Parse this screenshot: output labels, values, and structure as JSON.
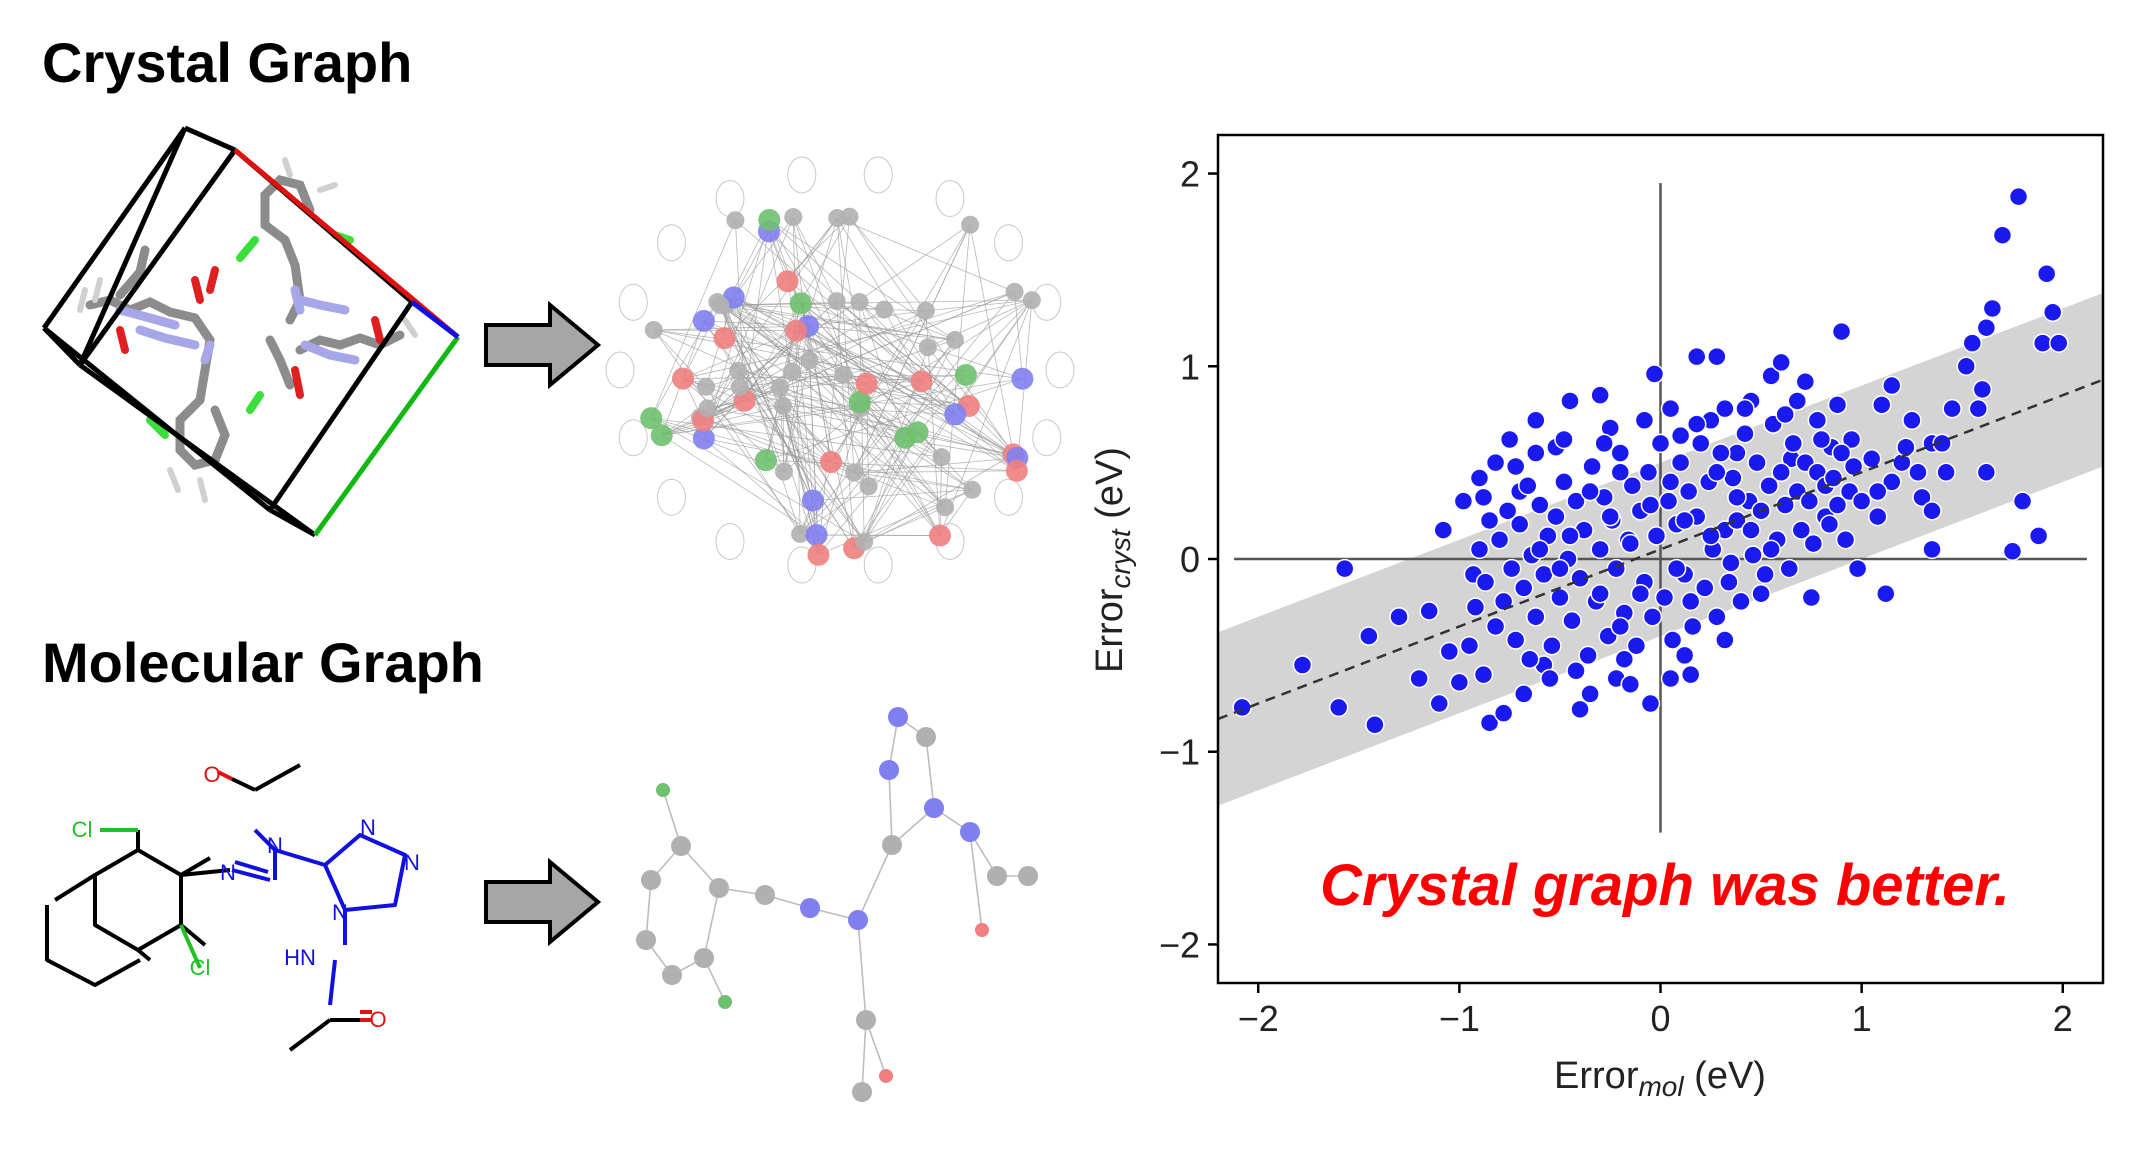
{
  "titles": {
    "crystal": "Crystal Graph",
    "molecular": "Molecular Graph"
  },
  "molecule_atoms": {
    "cl": "Cl",
    "n": "N",
    "o": "O",
    "hn": "HN"
  },
  "colors": {
    "node_gray": "#b0b0b0",
    "node_blue": "#7f7ff0",
    "node_red": "#f07f7f",
    "node_green": "#6fc06f",
    "scatter_point": "#1a1af0",
    "band": "#d4d4d4",
    "callout": "#ff0000",
    "arrow_fill": "#a6a6a6"
  },
  "chart_data": {
    "type": "scatter",
    "xlabel": "Error",
    "xlabel_sub": "mol",
    "xlabel_unit": " (eV)",
    "ylabel": "Error",
    "ylabel_sub": "cryst",
    "ylabel_unit": " (eV)",
    "xlim": [
      -2.2,
      2.2
    ],
    "ylim": [
      -2.2,
      2.2
    ],
    "x_ticks": [
      "−2",
      "−1",
      "0",
      "1",
      "2"
    ],
    "y_ticks": [
      "2",
      "1",
      "0",
      "−1",
      "−2"
    ],
    "fit_line": {
      "slope": 0.4,
      "intercept": 0.05
    },
    "band_halfwidth": 0.45,
    "annotation": "Crystal graph was better.",
    "points": [
      [
        -2.08,
        -0.77
      ],
      [
        -1.78,
        -0.55
      ],
      [
        -1.57,
        -0.05
      ],
      [
        -1.6,
        -0.77
      ],
      [
        -1.42,
        -0.86
      ],
      [
        -1.45,
        -0.4
      ],
      [
        -1.3,
        -0.3
      ],
      [
        -1.2,
        -0.62
      ],
      [
        -1.15,
        -0.27
      ],
      [
        -1.1,
        -0.75
      ],
      [
        -1.08,
        0.15
      ],
      [
        -1.05,
        -0.48
      ],
      [
        -1.0,
        -0.64
      ],
      [
        -0.98,
        0.3
      ],
      [
        -0.93,
        -0.08
      ],
      [
        -0.9,
        0.42
      ],
      [
        -0.88,
        -0.6
      ],
      [
        -0.85,
        -0.85
      ],
      [
        -0.82,
        0.5
      ],
      [
        -0.78,
        -0.8
      ],
      [
        -0.75,
        0.62
      ],
      [
        -0.7,
        0.35
      ],
      [
        -0.68,
        -0.7
      ],
      [
        -0.62,
        0.72
      ],
      [
        -0.58,
        -0.55
      ],
      [
        -0.52,
        0.58
      ],
      [
        -0.45,
        0.82
      ],
      [
        -0.4,
        -0.78
      ],
      [
        -0.3,
        0.85
      ],
      [
        -0.22,
        -0.62
      ],
      [
        -0.2,
        0.45
      ],
      [
        -0.08,
        0.72
      ],
      [
        -0.05,
        -0.75
      ],
      [
        0.1,
        0.64
      ],
      [
        0.15,
        -0.6
      ],
      [
        -0.03,
        0.96
      ],
      [
        0.18,
        1.05
      ],
      [
        0.28,
        1.05
      ],
      [
        0.32,
        0.78
      ],
      [
        0.38,
        0.55
      ],
      [
        0.45,
        0.82
      ],
      [
        0.5,
        -0.18
      ],
      [
        0.55,
        0.95
      ],
      [
        0.6,
        1.02
      ],
      [
        0.65,
        0.52
      ],
      [
        0.68,
        0.82
      ],
      [
        0.72,
        0.92
      ],
      [
        0.75,
        -0.2
      ],
      [
        0.78,
        0.72
      ],
      [
        0.82,
        0.22
      ],
      [
        0.85,
        0.58
      ],
      [
        0.88,
        0.8
      ],
      [
        0.9,
        1.18
      ],
      [
        0.92,
        0.1
      ],
      [
        0.95,
        0.62
      ],
      [
        0.98,
        -0.05
      ],
      [
        1.05,
        0.52
      ],
      [
        1.08,
        0.22
      ],
      [
        1.1,
        0.8
      ],
      [
        1.12,
        -0.18
      ],
      [
        1.15,
        0.4
      ],
      [
        1.2,
        0.5
      ],
      [
        1.25,
        0.72
      ],
      [
        1.28,
        0.45
      ],
      [
        1.3,
        0.32
      ],
      [
        1.35,
        0.05
      ],
      [
        1.35,
        0.25
      ],
      [
        1.42,
        0.45
      ],
      [
        1.45,
        0.78
      ],
      [
        1.52,
        1.0
      ],
      [
        1.55,
        1.12
      ],
      [
        1.6,
        0.88
      ],
      [
        1.65,
        1.3
      ],
      [
        1.7,
        1.68
      ],
      [
        1.78,
        1.88
      ],
      [
        1.8,
        0.3
      ],
      [
        1.88,
        0.12
      ],
      [
        1.92,
        1.48
      ],
      [
        1.95,
        1.28
      ],
      [
        1.62,
        1.2
      ],
      [
        1.58,
        0.78
      ],
      [
        1.62,
        0.45
      ],
      [
        1.9,
        1.12
      ],
      [
        1.98,
        1.12
      ],
      [
        1.75,
        0.04
      ],
      [
        1.22,
        0.58
      ],
      [
        1.35,
        0.6
      ],
      [
        1.08,
        0.35
      ],
      [
        1.15,
        0.9
      ],
      [
        1.4,
        0.6
      ],
      [
        -0.95,
        -0.45
      ],
      [
        -0.92,
        -0.25
      ],
      [
        -0.9,
        0.05
      ],
      [
        -0.87,
        -0.12
      ],
      [
        -0.85,
        0.2
      ],
      [
        -0.82,
        -0.35
      ],
      [
        -0.8,
        0.1
      ],
      [
        -0.78,
        -0.22
      ],
      [
        -0.76,
        0.25
      ],
      [
        -0.74,
        -0.05
      ],
      [
        -0.72,
        -0.42
      ],
      [
        -0.7,
        0.18
      ],
      [
        -0.68,
        -0.15
      ],
      [
        -0.66,
        0.38
      ],
      [
        -0.64,
        0.02
      ],
      [
        -0.62,
        -0.3
      ],
      [
        -0.6,
        0.28
      ],
      [
        -0.58,
        -0.08
      ],
      [
        -0.56,
        0.12
      ],
      [
        -0.54,
        -0.45
      ],
      [
        -0.52,
        0.22
      ],
      [
        -0.5,
        -0.2
      ],
      [
        -0.48,
        0.4
      ],
      [
        -0.46,
        0.0
      ],
      [
        -0.44,
        -0.32
      ],
      [
        -0.42,
        0.3
      ],
      [
        -0.4,
        -0.1
      ],
      [
        -0.38,
        0.15
      ],
      [
        -0.36,
        -0.5
      ],
      [
        -0.34,
        0.48
      ],
      [
        -0.32,
        -0.22
      ],
      [
        -0.3,
        0.05
      ],
      [
        -0.28,
        0.32
      ],
      [
        -0.26,
        -0.4
      ],
      [
        -0.24,
        0.2
      ],
      [
        -0.22,
        -0.05
      ],
      [
        -0.2,
        0.55
      ],
      [
        -0.18,
        -0.28
      ],
      [
        -0.16,
        0.1
      ],
      [
        -0.14,
        0.38
      ],
      [
        -0.12,
        -0.45
      ],
      [
        -0.1,
        0.25
      ],
      [
        -0.08,
        -0.12
      ],
      [
        -0.06,
        0.45
      ],
      [
        -0.04,
        -0.3
      ],
      [
        -0.02,
        0.12
      ],
      [
        0.0,
        0.6
      ],
      [
        0.02,
        -0.2
      ],
      [
        0.04,
        0.3
      ],
      [
        0.06,
        -0.42
      ],
      [
        0.08,
        0.18
      ],
      [
        0.1,
        0.5
      ],
      [
        0.12,
        -0.08
      ],
      [
        0.14,
        0.35
      ],
      [
        0.16,
        -0.35
      ],
      [
        0.18,
        0.22
      ],
      [
        0.2,
        0.6
      ],
      [
        0.22,
        -0.15
      ],
      [
        0.24,
        0.4
      ],
      [
        0.26,
        0.05
      ],
      [
        0.28,
        -0.3
      ],
      [
        0.3,
        0.55
      ],
      [
        0.32,
        0.15
      ],
      [
        0.34,
        -0.12
      ],
      [
        0.36,
        0.42
      ],
      [
        0.38,
        0.2
      ],
      [
        0.4,
        -0.22
      ],
      [
        0.42,
        0.65
      ],
      [
        0.44,
        0.3
      ],
      [
        0.46,
        0.02
      ],
      [
        0.48,
        0.5
      ],
      [
        0.5,
        0.25
      ],
      [
        0.52,
        -0.08
      ],
      [
        0.54,
        0.38
      ],
      [
        0.56,
        0.7
      ],
      [
        0.58,
        0.1
      ],
      [
        0.6,
        0.45
      ],
      [
        0.62,
        0.28
      ],
      [
        0.64,
        -0.05
      ],
      [
        0.66,
        0.6
      ],
      [
        0.68,
        0.35
      ],
      [
        0.7,
        0.15
      ],
      [
        0.72,
        0.5
      ],
      [
        0.74,
        0.3
      ],
      [
        0.76,
        0.08
      ],
      [
        0.78,
        0.45
      ],
      [
        0.8,
        0.62
      ],
      [
        0.82,
        0.38
      ],
      [
        0.84,
        0.18
      ],
      [
        0.86,
        0.42
      ],
      [
        0.88,
        0.28
      ],
      [
        0.9,
        0.55
      ],
      [
        0.94,
        0.35
      ],
      [
        0.96,
        0.48
      ],
      [
        1.0,
        0.3
      ],
      [
        -0.55,
        -0.62
      ],
      [
        -0.35,
        -0.7
      ],
      [
        -0.15,
        -0.65
      ],
      [
        0.05,
        -0.62
      ],
      [
        -0.48,
        0.62
      ],
      [
        -0.25,
        0.68
      ],
      [
        0.05,
        0.78
      ],
      [
        0.25,
        0.72
      ],
      [
        -0.65,
        -0.52
      ],
      [
        -0.42,
        -0.58
      ],
      [
        -0.18,
        -0.52
      ],
      [
        0.12,
        -0.5
      ],
      [
        0.32,
        -0.42
      ],
      [
        -0.72,
        0.48
      ],
      [
        -0.28,
        0.6
      ],
      [
        0.18,
        0.7
      ],
      [
        0.42,
        0.78
      ],
      [
        -0.88,
        0.32
      ],
      [
        -0.62,
        0.55
      ],
      [
        0.62,
        0.75
      ],
      [
        -0.15,
        0.08
      ],
      [
        0.08,
        -0.05
      ],
      [
        -0.3,
        -0.18
      ],
      [
        0.25,
        0.12
      ],
      [
        -0.05,
        0.28
      ],
      [
        0.15,
        -0.22
      ],
      [
        -0.45,
        0.12
      ],
      [
        0.35,
        -0.02
      ],
      [
        -0.2,
        -0.35
      ],
      [
        0.45,
        0.15
      ],
      [
        -0.6,
        0.05
      ],
      [
        0.55,
        0.05
      ],
      [
        -0.1,
        -0.18
      ],
      [
        0.05,
        0.4
      ],
      [
        -0.35,
        0.35
      ],
      [
        0.28,
        0.45
      ],
      [
        -0.5,
        -0.05
      ],
      [
        0.38,
        0.32
      ],
      [
        -0.25,
        0.22
      ],
      [
        0.12,
        0.2
      ]
    ]
  }
}
